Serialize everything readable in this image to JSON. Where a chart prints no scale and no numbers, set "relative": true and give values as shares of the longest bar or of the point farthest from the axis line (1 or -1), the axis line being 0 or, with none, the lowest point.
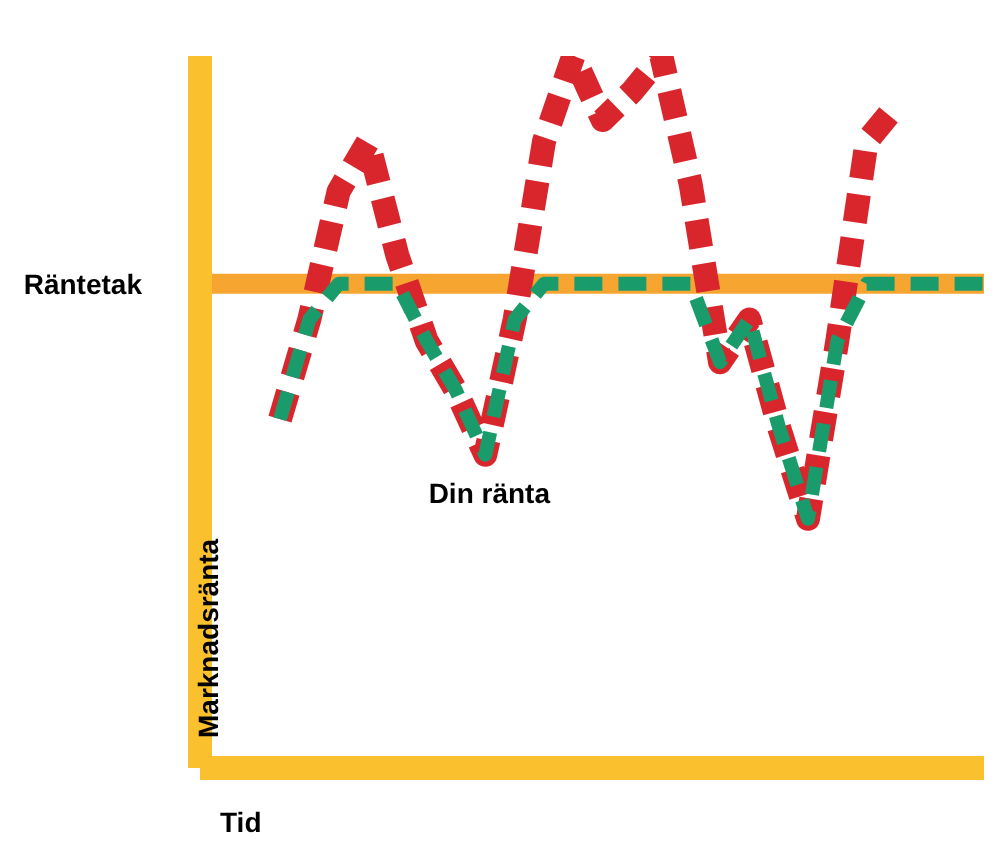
{
  "chart_data": {
    "type": "line",
    "relative": true,
    "xlabel": "Tid",
    "ylabel": "Marknadsränta",
    "line_style": "dashed",
    "marker": "none",
    "categories": [
      null,
      null,
      null,
      null,
      null,
      null,
      null,
      null,
      null,
      null,
      null,
      null,
      null,
      null,
      null,
      null,
      null,
      null,
      null,
      null,
      null,
      null,
      null,
      null,
      null
    ],
    "series": [
      {
        "color": "#d9262c",
        "values": [
          0.49,
          0.63,
          0.81,
          0.88,
          0.72,
          0.6,
          0.53,
          0.44,
          0.63,
          0.88,
          1.0,
          0.91,
          0.95,
          1.0,
          0.82,
          0.57,
          0.63,
          0.48,
          0.35,
          0.6,
          0.88,
          0.93,
          null,
          null,
          null
        ]
      },
      {
        "name": "Din ränta",
        "color": "#1a9b6c",
        "values": [
          0.49,
          0.63,
          0.68,
          0.68,
          0.68,
          0.6,
          0.53,
          0.44,
          0.63,
          0.68,
          0.68,
          0.68,
          0.68,
          0.68,
          0.68,
          0.57,
          0.63,
          0.48,
          0.35,
          0.6,
          0.68,
          0.68,
          0.68,
          0.68,
          0.68
        ]
      }
    ],
    "ref_lines": [
      {
        "axis": "y",
        "value": 0.68,
        "label": "Räntetak",
        "color": "#f7a531"
      }
    ]
  }
}
